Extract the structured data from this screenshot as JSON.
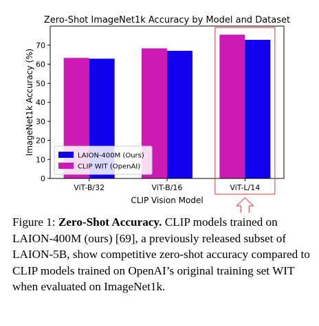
{
  "chart_data": {
    "type": "bar",
    "title": "Zero-Shot ImageNet1k Accuracy by Model and Dataset",
    "xlabel": "CLIP Vision Model",
    "ylabel": "ImageNet1k Accuracy (%)",
    "categories": [
      "ViT-B/32",
      "ViT-B/16",
      "ViT-L/14"
    ],
    "ylim": [
      0,
      80
    ],
    "yticks": [
      0,
      10,
      20,
      30,
      40,
      50,
      60,
      70
    ],
    "series": [
      {
        "name": "CLIP WIT (OpenAI)",
        "color": "#cc1ab4",
        "values": [
          63.3,
          68.3,
          75.5
        ]
      },
      {
        "name": "LAION-400M (Ours)",
        "color": "#1000ee",
        "values": [
          62.9,
          67.0,
          72.8
        ]
      }
    ],
    "legend_position": "lower-left",
    "highlight_category": "ViT-L/14",
    "highlight_color": "#e05555"
  },
  "caption": {
    "label": "Figure 1:",
    "bold": "Zero-Shot Accuracy.",
    "text": "CLIP models trained on LAION-400M (ours) [69], a previously released subset of LAION-5B, show competitive zero-shot accuracy compared to CLIP models trained on OpenAI’s original training set WIT when evaluated on ImageNet1k."
  }
}
